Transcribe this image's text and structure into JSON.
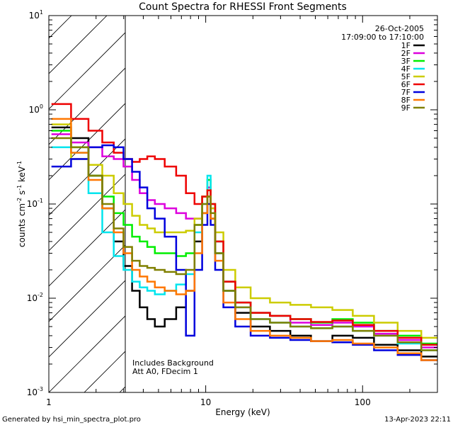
{
  "chart_data": {
    "type": "line",
    "title": "Count Spectra for RHESSI Front Segments",
    "xlabel": "Energy (keV)",
    "ylabel": {
      "text": "counts cm",
      "sup1": "-2",
      "mid1": " s",
      "sup2": "-1",
      "mid2": " keV",
      "sup3": "-1"
    },
    "xscale": "log",
    "yscale": "log",
    "xlim": [
      1,
      300
    ],
    "ylim": [
      0.001,
      10
    ],
    "x_ticks": [
      {
        "value": 1,
        "label": "1"
      },
      {
        "value": 10,
        "label": "10"
      },
      {
        "value": 100,
        "label": "100"
      }
    ],
    "y_ticks": [
      {
        "value": 0.001,
        "base": "10",
        "exp": "-3"
      },
      {
        "value": 0.01,
        "base": "10",
        "exp": "-2"
      },
      {
        "value": 0.1,
        "base": "10",
        "exp": "-1"
      },
      {
        "value": 1,
        "base": "10",
        "exp": "0"
      },
      {
        "value": 10,
        "base": "10",
        "exp": "1"
      }
    ],
    "shaded_region": {
      "x_range": [
        1,
        3
      ],
      "style": "diagonal-hatch",
      "note": "attenuated/excluded low-energy range"
    },
    "annotations": {
      "date": "26-Oct-2005",
      "time_range": "17:09:00 to 17:10:00",
      "background_note": "Includes Background",
      "attenuator": "Att A0, FDecim 1"
    },
    "legend": {
      "position": "top-right"
    },
    "series": [
      {
        "name": "1F",
        "color": "#000000",
        "points": [
          [
            1.2,
            0.65
          ],
          [
            1.6,
            0.5
          ],
          [
            2.0,
            0.2
          ],
          [
            2.4,
            0.09
          ],
          [
            2.8,
            0.04
          ],
          [
            3.2,
            0.022
          ],
          [
            3.6,
            0.012
          ],
          [
            4.0,
            0.008
          ],
          [
            4.5,
            0.006
          ],
          [
            5.0,
            0.005
          ],
          [
            6.0,
            0.006
          ],
          [
            7.0,
            0.008
          ],
          [
            8.0,
            0.012
          ],
          [
            9.0,
            0.04
          ],
          [
            10.0,
            0.08
          ],
          [
            10.5,
            0.12
          ],
          [
            11.0,
            0.07
          ],
          [
            12.0,
            0.03
          ],
          [
            14.0,
            0.012
          ],
          [
            17.0,
            0.007
          ],
          [
            22.0,
            0.005
          ],
          [
            30.0,
            0.0045
          ],
          [
            40.0,
            0.004
          ],
          [
            55.0,
            0.0035
          ],
          [
            75.0,
            0.004
          ],
          [
            100.0,
            0.0038
          ],
          [
            140.0,
            0.0032
          ],
          [
            200.0,
            0.0028
          ],
          [
            280.0,
            0.0024
          ]
        ]
      },
      {
        "name": "2F",
        "color": "#dd00dd",
        "points": [
          [
            1.2,
            0.55
          ],
          [
            1.6,
            0.45
          ],
          [
            2.0,
            0.4
          ],
          [
            2.4,
            0.32
          ],
          [
            2.8,
            0.3
          ],
          [
            3.2,
            0.25
          ],
          [
            3.6,
            0.18
          ],
          [
            4.0,
            0.13
          ],
          [
            4.5,
            0.11
          ],
          [
            5.0,
            0.1
          ],
          [
            6.0,
            0.09
          ],
          [
            7.0,
            0.08
          ],
          [
            8.0,
            0.07
          ],
          [
            9.0,
            0.07
          ],
          [
            10.0,
            0.12
          ],
          [
            10.5,
            0.15
          ],
          [
            11.0,
            0.09
          ],
          [
            12.0,
            0.04
          ],
          [
            14.0,
            0.015
          ],
          [
            17.0,
            0.009
          ],
          [
            22.0,
            0.007
          ],
          [
            30.0,
            0.0065
          ],
          [
            40.0,
            0.0055
          ],
          [
            55.0,
            0.0052
          ],
          [
            75.0,
            0.0055
          ],
          [
            100.0,
            0.005
          ],
          [
            140.0,
            0.0042
          ],
          [
            200.0,
            0.0036
          ],
          [
            280.0,
            0.003
          ]
        ]
      },
      {
        "name": "3F",
        "color": "#00ee00",
        "points": [
          [
            1.2,
            0.6
          ],
          [
            1.6,
            0.4
          ],
          [
            2.0,
            0.2
          ],
          [
            2.4,
            0.12
          ],
          [
            2.8,
            0.08
          ],
          [
            3.2,
            0.06
          ],
          [
            3.6,
            0.045
          ],
          [
            4.0,
            0.04
          ],
          [
            4.5,
            0.035
          ],
          [
            5.0,
            0.03
          ],
          [
            6.0,
            0.03
          ],
          [
            7.0,
            0.028
          ],
          [
            8.0,
            0.03
          ],
          [
            9.0,
            0.06
          ],
          [
            10.0,
            0.12
          ],
          [
            10.5,
            0.18
          ],
          [
            11.0,
            0.1
          ],
          [
            12.0,
            0.04
          ],
          [
            14.0,
            0.015
          ],
          [
            17.0,
            0.009
          ],
          [
            22.0,
            0.007
          ],
          [
            30.0,
            0.0065
          ],
          [
            40.0,
            0.006
          ],
          [
            55.0,
            0.0055
          ],
          [
            75.0,
            0.006
          ],
          [
            100.0,
            0.0055
          ],
          [
            140.0,
            0.0045
          ],
          [
            200.0,
            0.004
          ],
          [
            280.0,
            0.0033
          ]
        ]
      },
      {
        "name": "4F",
        "color": "#00e5ee",
        "points": [
          [
            1.2,
            0.4
          ],
          [
            1.6,
            0.35
          ],
          [
            2.0,
            0.13
          ],
          [
            2.4,
            0.05
          ],
          [
            2.8,
            0.028
          ],
          [
            3.2,
            0.02
          ],
          [
            3.6,
            0.015
          ],
          [
            4.0,
            0.013
          ],
          [
            4.5,
            0.012
          ],
          [
            5.0,
            0.011
          ],
          [
            6.0,
            0.012
          ],
          [
            7.0,
            0.014
          ],
          [
            8.0,
            0.018
          ],
          [
            9.0,
            0.05
          ],
          [
            10.0,
            0.1
          ],
          [
            10.5,
            0.2
          ],
          [
            11.0,
            0.09
          ],
          [
            12.0,
            0.03
          ],
          [
            14.0,
            0.012
          ],
          [
            17.0,
            0.008
          ],
          [
            22.0,
            0.006
          ],
          [
            30.0,
            0.0055
          ],
          [
            40.0,
            0.005
          ],
          [
            55.0,
            0.0048
          ],
          [
            75.0,
            0.005
          ],
          [
            100.0,
            0.0045
          ],
          [
            140.0,
            0.004
          ],
          [
            200.0,
            0.0033
          ],
          [
            280.0,
            0.0028
          ]
        ]
      },
      {
        "name": "5F",
        "color": "#cccc00",
        "points": [
          [
            1.2,
            0.7
          ],
          [
            1.6,
            0.3
          ],
          [
            2.0,
            0.26
          ],
          [
            2.4,
            0.2
          ],
          [
            2.8,
            0.13
          ],
          [
            3.2,
            0.1
          ],
          [
            3.6,
            0.075
          ],
          [
            4.0,
            0.06
          ],
          [
            4.5,
            0.055
          ],
          [
            5.0,
            0.05
          ],
          [
            6.0,
            0.05
          ],
          [
            7.0,
            0.05
          ],
          [
            8.0,
            0.052
          ],
          [
            9.0,
            0.07
          ],
          [
            10.0,
            0.12
          ],
          [
            10.5,
            0.14
          ],
          [
            11.0,
            0.09
          ],
          [
            12.0,
            0.05
          ],
          [
            14.0,
            0.02
          ],
          [
            17.0,
            0.013
          ],
          [
            22.0,
            0.01
          ],
          [
            30.0,
            0.009
          ],
          [
            40.0,
            0.0085
          ],
          [
            55.0,
            0.008
          ],
          [
            75.0,
            0.0075
          ],
          [
            100.0,
            0.0065
          ],
          [
            140.0,
            0.0055
          ],
          [
            200.0,
            0.0045
          ],
          [
            280.0,
            0.0038
          ]
        ]
      },
      {
        "name": "6F",
        "color": "#ee0000",
        "points": [
          [
            1.2,
            1.15
          ],
          [
            1.6,
            0.8
          ],
          [
            2.0,
            0.6
          ],
          [
            2.4,
            0.45
          ],
          [
            2.8,
            0.35
          ],
          [
            3.2,
            0.3
          ],
          [
            3.6,
            0.28
          ],
          [
            4.0,
            0.3
          ],
          [
            4.5,
            0.32
          ],
          [
            5.0,
            0.3
          ],
          [
            6.0,
            0.25
          ],
          [
            7.0,
            0.2
          ],
          [
            8.0,
            0.13
          ],
          [
            9.0,
            0.1
          ],
          [
            10.0,
            0.12
          ],
          [
            10.5,
            0.14
          ],
          [
            11.0,
            0.1
          ],
          [
            12.0,
            0.04
          ],
          [
            14.0,
            0.015
          ],
          [
            17.0,
            0.009
          ],
          [
            22.0,
            0.007
          ],
          [
            30.0,
            0.0065
          ],
          [
            40.0,
            0.006
          ],
          [
            55.0,
            0.0056
          ],
          [
            75.0,
            0.0058
          ],
          [
            100.0,
            0.0052
          ],
          [
            140.0,
            0.0045
          ],
          [
            200.0,
            0.0038
          ],
          [
            280.0,
            0.0032
          ]
        ]
      },
      {
        "name": "7F",
        "color": "#0000dd",
        "points": [
          [
            1.2,
            0.25
          ],
          [
            1.6,
            0.3
          ],
          [
            2.0,
            0.4
          ],
          [
            2.4,
            0.42
          ],
          [
            2.8,
            0.4
          ],
          [
            3.2,
            0.3
          ],
          [
            3.6,
            0.22
          ],
          [
            4.0,
            0.15
          ],
          [
            4.5,
            0.09
          ],
          [
            5.0,
            0.07
          ],
          [
            6.0,
            0.045
          ],
          [
            7.0,
            0.02
          ],
          [
            8.0,
            0.004
          ],
          [
            9.0,
            0.02
          ],
          [
            10.0,
            0.06
          ],
          [
            10.5,
            0.1
          ],
          [
            11.0,
            0.06
          ],
          [
            12.0,
            0.02
          ],
          [
            14.0,
            0.008
          ],
          [
            17.0,
            0.005
          ],
          [
            22.0,
            0.004
          ],
          [
            30.0,
            0.0038
          ],
          [
            40.0,
            0.0036
          ],
          [
            55.0,
            0.0035
          ],
          [
            75.0,
            0.0034
          ],
          [
            100.0,
            0.0032
          ],
          [
            140.0,
            0.0028
          ],
          [
            200.0,
            0.0025
          ],
          [
            280.0,
            0.0022
          ]
        ]
      },
      {
        "name": "8F",
        "color": "#ff7700",
        "points": [
          [
            1.2,
            0.8
          ],
          [
            1.6,
            0.35
          ],
          [
            2.0,
            0.18
          ],
          [
            2.4,
            0.09
          ],
          [
            2.8,
            0.05
          ],
          [
            3.2,
            0.03
          ],
          [
            3.6,
            0.02
          ],
          [
            4.0,
            0.017
          ],
          [
            4.5,
            0.015
          ],
          [
            5.0,
            0.013
          ],
          [
            6.0,
            0.012
          ],
          [
            7.0,
            0.011
          ],
          [
            8.0,
            0.012
          ],
          [
            9.0,
            0.03
          ],
          [
            10.0,
            0.08
          ],
          [
            10.5,
            0.12
          ],
          [
            11.0,
            0.07
          ],
          [
            12.0,
            0.025
          ],
          [
            14.0,
            0.009
          ],
          [
            17.0,
            0.006
          ],
          [
            22.0,
            0.0045
          ],
          [
            30.0,
            0.004
          ],
          [
            40.0,
            0.0038
          ],
          [
            55.0,
            0.0035
          ],
          [
            75.0,
            0.0036
          ],
          [
            100.0,
            0.0033
          ],
          [
            140.0,
            0.003
          ],
          [
            200.0,
            0.0026
          ],
          [
            280.0,
            0.0022
          ]
        ]
      },
      {
        "name": "9F",
        "color": "#808000",
        "points": [
          [
            1.2,
            0.5
          ],
          [
            1.6,
            0.4
          ],
          [
            2.0,
            0.2
          ],
          [
            2.4,
            0.1
          ],
          [
            2.8,
            0.055
          ],
          [
            3.2,
            0.035
          ],
          [
            3.6,
            0.025
          ],
          [
            4.0,
            0.022
          ],
          [
            4.5,
            0.021
          ],
          [
            5.0,
            0.02
          ],
          [
            6.0,
            0.019
          ],
          [
            7.0,
            0.018
          ],
          [
            8.0,
            0.02
          ],
          [
            9.0,
            0.06
          ],
          [
            10.0,
            0.1
          ],
          [
            10.5,
            0.12
          ],
          [
            11.0,
            0.08
          ],
          [
            12.0,
            0.03
          ],
          [
            14.0,
            0.012
          ],
          [
            17.0,
            0.008
          ],
          [
            22.0,
            0.006
          ],
          [
            30.0,
            0.0055
          ],
          [
            40.0,
            0.005
          ],
          [
            55.0,
            0.0048
          ],
          [
            75.0,
            0.005
          ],
          [
            100.0,
            0.0045
          ],
          [
            140.0,
            0.004
          ],
          [
            200.0,
            0.0034
          ],
          [
            280.0,
            0.0028
          ]
        ]
      }
    ]
  },
  "footer": {
    "left": "Generated by hsi_min_spectra_plot.pro",
    "right": "13-Apr-2023 22:11"
  }
}
